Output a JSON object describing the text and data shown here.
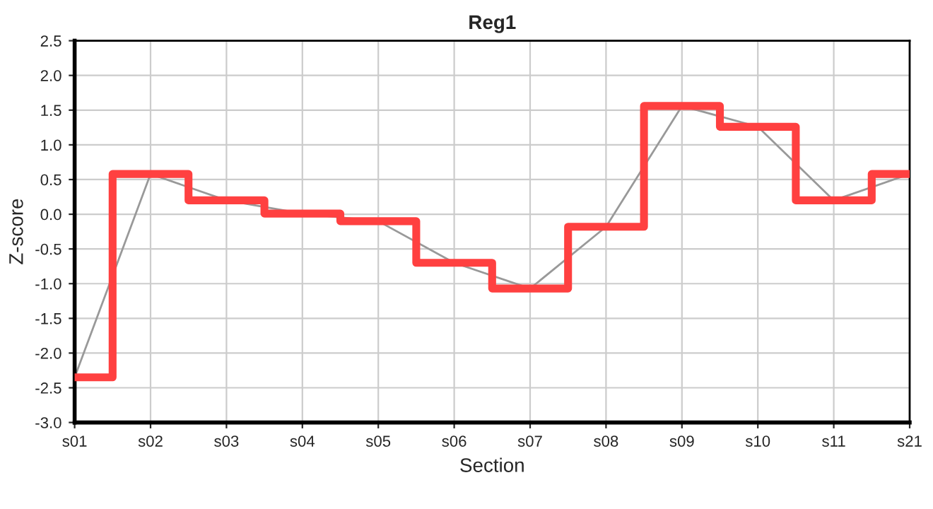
{
  "chart_data": {
    "type": "line",
    "title": "Reg1",
    "xlabel": "Section",
    "ylabel": "Z-score",
    "categories": [
      "s01",
      "s02",
      "s03",
      "s04",
      "s05",
      "s06",
      "s07",
      "s08",
      "s09",
      "s10",
      "s11",
      "s21"
    ],
    "series": [
      {
        "color": "#999999",
        "values": [
          -2.35,
          0.58,
          0.2,
          0.01,
          -0.1,
          -0.7,
          -1.07,
          -0.18,
          1.56,
          1.26,
          0.2,
          0.58
        ]
      },
      {
        "type": "step",
        "color": "#ff4040",
        "values": [
          -2.35,
          0.58,
          0.2,
          0.01,
          -0.1,
          -0.7,
          -1.07,
          -0.18,
          1.56,
          1.26,
          0.2,
          0.58
        ]
      }
    ],
    "ylim": [
      -3.0,
      2.5
    ],
    "yticks": [
      {
        "value": -3.0,
        "label": "-3.0"
      },
      {
        "value": -2.5,
        "label": "-2.5"
      },
      {
        "value": -2.0,
        "label": "-2.0"
      },
      {
        "value": -1.5,
        "label": "-1.5"
      },
      {
        "value": -1.0,
        "label": "-1.0"
      },
      {
        "value": -0.5,
        "label": "-0.5"
      },
      {
        "value": 0.0,
        "label": "0.0"
      },
      {
        "value": 0.5,
        "label": "0.5"
      },
      {
        "value": 1.0,
        "label": "1.0"
      },
      {
        "value": 1.5,
        "label": "1.5"
      },
      {
        "value": 2.0,
        "label": "2.0"
      },
      {
        "value": 2.5,
        "label": "2.5"
      }
    ],
    "grid": true,
    "legend": false,
    "marker": "none",
    "line_style": "solid"
  }
}
